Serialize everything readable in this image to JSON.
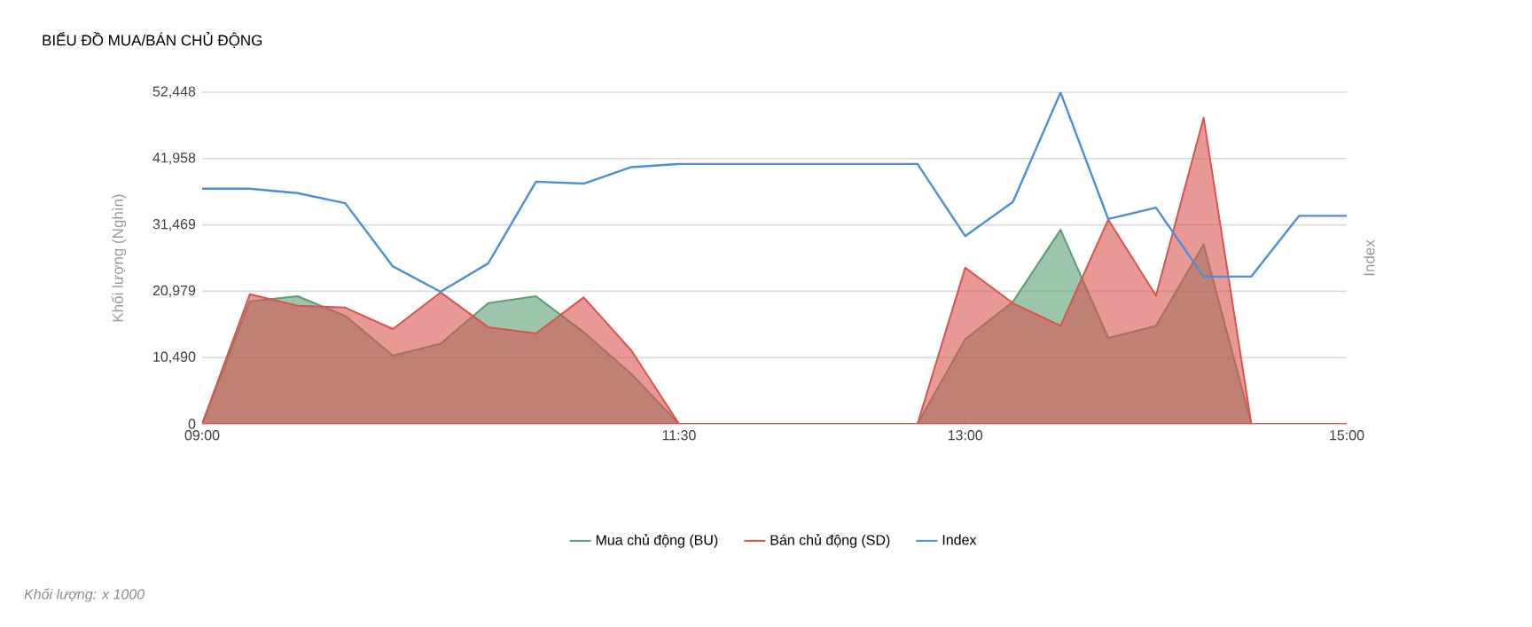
{
  "chart_data": {
    "type": "area",
    "title": "BIỂU ĐỒ MUA/BÁN CHỦ ĐỘNG",
    "ylabel": "Khối lượng (Nghìn)",
    "y2label": "Index",
    "annotations": [
      "Khối lượng: x 1000"
    ],
    "x": [
      9,
      9.25,
      9.5,
      9.75,
      10,
      10.25,
      10.5,
      10.75,
      11,
      11.25,
      11.5,
      11.75,
      12,
      12.25,
      12.5,
      12.75,
      13,
      13.25,
      13.5,
      13.75,
      14,
      14.25,
      14.5,
      14.75,
      15
    ],
    "series": [
      {
        "name": "Mua chủ động (BU)",
        "color": "#5a9e74",
        "values": [
          0,
          19400,
          20200,
          17100,
          10800,
          12700,
          19100,
          20200,
          14500,
          7900,
          0,
          0,
          0,
          0,
          0,
          0,
          13400,
          19300,
          30700,
          13600,
          15500,
          28400,
          0,
          0,
          0
        ]
      },
      {
        "name": "Bán chủ động (SD)",
        "color": "#d9534f",
        "values": [
          0,
          20500,
          18700,
          18400,
          15000,
          20800,
          15300,
          14300,
          20000,
          11600,
          0,
          0,
          0,
          0,
          0,
          0,
          24700,
          19100,
          15500,
          32300,
          20300,
          48400,
          0,
          0,
          0
        ]
      },
      {
        "name": "Index",
        "color": "#4a90d9",
        "type": "line",
        "values": [
          37200,
          37200,
          36500,
          34900,
          24900,
          20900,
          25400,
          38300,
          38000,
          40600,
          41100,
          41100,
          41100,
          41100,
          41100,
          41100,
          29700,
          35100,
          52400,
          32400,
          34200,
          23300,
          23300,
          32900,
          32900
        ]
      }
    ],
    "xlim": [
      9,
      15
    ],
    "xticks": [
      {
        "value": 9,
        "label": "09:00"
      },
      {
        "value": 11.5,
        "label": "11:30"
      },
      {
        "value": 13,
        "label": "13:00"
      },
      {
        "value": 15,
        "label": "15:00"
      }
    ],
    "ylim": [
      0,
      52448
    ],
    "yticks": [
      0,
      {
        "value": 10490,
        "label": "10,490"
      },
      {
        "value": 20979,
        "label": "20,979"
      },
      {
        "value": 31469,
        "label": "31,469"
      },
      {
        "value": 41958,
        "label": "41,958"
      },
      {
        "value": 52448,
        "label": "52,448"
      }
    ],
    "grid": "y",
    "legend": "bottom"
  }
}
